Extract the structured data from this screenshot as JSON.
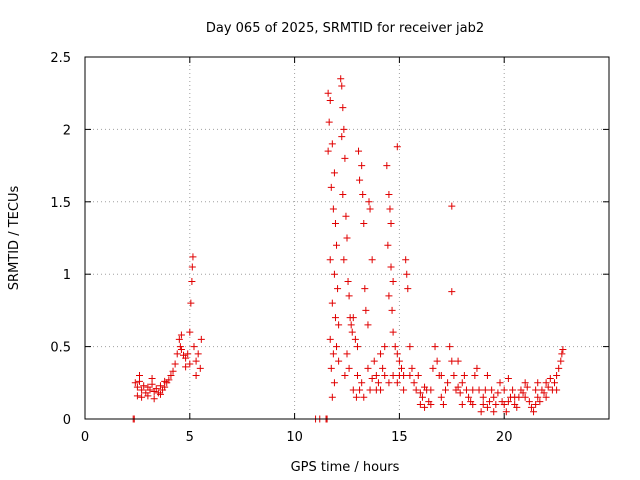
{
  "chart_data": {
    "type": "scatter",
    "title": "Day 065 of 2025, SRMTID for receiver jab2",
    "xlabel": "GPS time / hours",
    "ylabel": "SRMTID / TECUs",
    "xlim": [
      0,
      25
    ],
    "ylim": [
      0,
      2.5
    ],
    "x_ticks": [
      0,
      5,
      10,
      15,
      20
    ],
    "x_tick_labels": [
      "0",
      "5",
      "10",
      "15",
      "20"
    ],
    "y_ticks": [
      0,
      0.5,
      1,
      1.5,
      2,
      2.5
    ],
    "y_tick_labels": [
      "0",
      "0.5",
      "1",
      "1.5",
      "2",
      "2.5"
    ],
    "grid": true,
    "marker": "+",
    "series_color": "#e00000",
    "points": [
      [
        2.3,
        0.0
      ],
      [
        2.35,
        0.0
      ],
      [
        11.0,
        0.0
      ],
      [
        11.2,
        0.0
      ],
      [
        11.5,
        0.0
      ],
      [
        11.55,
        0.0
      ],
      [
        2.4,
        0.25
      ],
      [
        2.5,
        0.22
      ],
      [
        2.6,
        0.26
      ],
      [
        2.7,
        0.2
      ],
      [
        2.8,
        0.23
      ],
      [
        2.9,
        0.18
      ],
      [
        3.0,
        0.22
      ],
      [
        3.1,
        0.2
      ],
      [
        3.2,
        0.24
      ],
      [
        3.3,
        0.19
      ],
      [
        3.4,
        0.21
      ],
      [
        3.5,
        0.18
      ],
      [
        3.6,
        0.23
      ],
      [
        3.7,
        0.2
      ],
      [
        3.8,
        0.22
      ],
      [
        3.9,
        0.25
      ],
      [
        4.0,
        0.27
      ],
      [
        4.1,
        0.3
      ],
      [
        4.2,
        0.33
      ],
      [
        4.3,
        0.38
      ],
      [
        4.4,
        0.45
      ],
      [
        4.5,
        0.55
      ],
      [
        4.55,
        0.5
      ],
      [
        4.6,
        0.48
      ],
      [
        4.7,
        0.44
      ],
      [
        4.8,
        0.42
      ],
      [
        4.9,
        0.45
      ],
      [
        5.0,
        0.6
      ],
      [
        5.05,
        0.8
      ],
      [
        5.1,
        0.95
      ],
      [
        5.12,
        1.05
      ],
      [
        5.15,
        1.12
      ],
      [
        5.2,
        0.5
      ],
      [
        5.3,
        0.4
      ],
      [
        5.4,
        0.45
      ],
      [
        5.5,
        0.35
      ],
      [
        5.55,
        0.55
      ],
      [
        2.5,
        0.16
      ],
      [
        2.7,
        0.15
      ],
      [
        3.0,
        0.16
      ],
      [
        3.3,
        0.14
      ],
      [
        3.6,
        0.17
      ],
      [
        2.6,
        0.3
      ],
      [
        3.2,
        0.28
      ],
      [
        3.8,
        0.26
      ],
      [
        4.6,
        0.58
      ],
      [
        4.8,
        0.36
      ],
      [
        5.0,
        0.38
      ],
      [
        5.3,
        0.3
      ],
      [
        11.6,
        2.25
      ],
      [
        11.7,
        2.2
      ],
      [
        11.65,
        2.05
      ],
      [
        11.8,
        1.9
      ],
      [
        11.6,
        1.85
      ],
      [
        11.9,
        1.7
      ],
      [
        11.75,
        1.6
      ],
      [
        11.85,
        1.45
      ],
      [
        11.95,
        1.35
      ],
      [
        12.0,
        1.2
      ],
      [
        11.7,
        1.1
      ],
      [
        11.9,
        1.0
      ],
      [
        12.05,
        0.9
      ],
      [
        11.8,
        0.8
      ],
      [
        11.95,
        0.7
      ],
      [
        12.1,
        0.65
      ],
      [
        11.7,
        0.55
      ],
      [
        12.0,
        0.5
      ],
      [
        11.85,
        0.45
      ],
      [
        11.75,
        0.35
      ],
      [
        11.9,
        0.25
      ],
      [
        11.8,
        0.15
      ],
      [
        12.1,
        0.4
      ],
      [
        12.2,
        2.35
      ],
      [
        12.25,
        2.3
      ],
      [
        12.3,
        2.15
      ],
      [
        12.35,
        2.0
      ],
      [
        12.25,
        1.95
      ],
      [
        12.4,
        1.8
      ],
      [
        12.3,
        1.55
      ],
      [
        12.45,
        1.4
      ],
      [
        12.5,
        1.25
      ],
      [
        12.35,
        1.1
      ],
      [
        12.55,
        0.95
      ],
      [
        12.6,
        0.85
      ],
      [
        12.65,
        0.7
      ],
      [
        12.7,
        0.65
      ],
      [
        12.75,
        0.6
      ],
      [
        12.8,
        0.7
      ],
      [
        12.5,
        0.45
      ],
      [
        12.6,
        0.35
      ],
      [
        12.4,
        0.3
      ],
      [
        12.9,
        0.55
      ],
      [
        13.0,
        0.5
      ],
      [
        13.1,
        0.2
      ],
      [
        13.2,
        0.25
      ],
      [
        13.05,
        1.85
      ],
      [
        13.1,
        1.65
      ],
      [
        13.2,
        1.75
      ],
      [
        13.25,
        1.55
      ],
      [
        13.3,
        1.35
      ],
      [
        13.35,
        0.9
      ],
      [
        13.4,
        0.75
      ],
      [
        13.5,
        0.65
      ],
      [
        13.55,
        1.5
      ],
      [
        13.6,
        1.45
      ],
      [
        13.7,
        1.1
      ],
      [
        13.8,
        0.4
      ],
      [
        13.9,
        0.3
      ],
      [
        14.0,
        0.25
      ],
      [
        14.1,
        0.2
      ],
      [
        13.6,
        0.2
      ],
      [
        13.7,
        0.28
      ],
      [
        14.2,
        0.35
      ],
      [
        14.3,
        0.5
      ],
      [
        14.4,
        1.75
      ],
      [
        14.5,
        1.55
      ],
      [
        14.55,
        1.45
      ],
      [
        14.6,
        1.35
      ],
      [
        14.45,
        1.2
      ],
      [
        14.6,
        1.05
      ],
      [
        14.7,
        0.95
      ],
      [
        14.5,
        0.85
      ],
      [
        14.65,
        0.75
      ],
      [
        14.7,
        0.6
      ],
      [
        14.8,
        0.5
      ],
      [
        14.9,
        1.88
      ],
      [
        14.9,
        0.45
      ],
      [
        15.0,
        0.4
      ],
      [
        15.1,
        0.35
      ],
      [
        15.2,
        0.3
      ],
      [
        15.3,
        1.1
      ],
      [
        15.35,
        1.0
      ],
      [
        15.4,
        0.9
      ],
      [
        15.5,
        0.5
      ],
      [
        15.6,
        0.35
      ],
      [
        15.7,
        0.25
      ],
      [
        15.8,
        0.2
      ],
      [
        15.9,
        0.3
      ],
      [
        16.0,
        0.18
      ],
      [
        16.1,
        0.15
      ],
      [
        16.2,
        0.22
      ],
      [
        16.3,
        0.2
      ],
      [
        16.4,
        0.12
      ],
      [
        16.5,
        0.2
      ],
      [
        16.6,
        0.35
      ],
      [
        16.7,
        0.5
      ],
      [
        16.8,
        0.4
      ],
      [
        16.9,
        0.3
      ],
      [
        17.0,
        0.15
      ],
      [
        17.1,
        0.1
      ],
      [
        17.2,
        0.2
      ],
      [
        17.3,
        0.25
      ],
      [
        17.4,
        0.5
      ],
      [
        17.5,
        1.47
      ],
      [
        17.5,
        0.88
      ],
      [
        17.6,
        0.3
      ],
      [
        17.7,
        0.2
      ],
      [
        17.8,
        0.22
      ],
      [
        17.9,
        0.18
      ],
      [
        18.0,
        0.25
      ],
      [
        18.1,
        0.3
      ],
      [
        18.2,
        0.2
      ],
      [
        18.3,
        0.15
      ],
      [
        18.4,
        0.12
      ],
      [
        18.5,
        0.1
      ],
      [
        18.6,
        0.3
      ],
      [
        18.7,
        0.35
      ],
      [
        18.8,
        0.2
      ],
      [
        18.9,
        0.05
      ],
      [
        19.0,
        0.15
      ],
      [
        19.1,
        0.2
      ],
      [
        19.2,
        0.08
      ],
      [
        19.3,
        0.12
      ],
      [
        19.4,
        0.2
      ],
      [
        19.5,
        0.15
      ],
      [
        19.6,
        0.1
      ],
      [
        19.7,
        0.18
      ],
      [
        19.8,
        0.25
      ],
      [
        19.9,
        0.12
      ],
      [
        20.0,
        0.1
      ],
      [
        20.1,
        0.05
      ],
      [
        20.2,
        0.12
      ],
      [
        20.3,
        0.15
      ],
      [
        20.4,
        0.2
      ],
      [
        20.5,
        0.1
      ],
      [
        20.6,
        0.08
      ],
      [
        20.7,
        0.15
      ],
      [
        20.8,
        0.2
      ],
      [
        20.9,
        0.18
      ],
      [
        21.0,
        0.25
      ],
      [
        21.1,
        0.22
      ],
      [
        21.2,
        0.12
      ],
      [
        21.3,
        0.08
      ],
      [
        21.4,
        0.05
      ],
      [
        21.5,
        0.1
      ],
      [
        21.6,
        0.15
      ],
      [
        21.7,
        0.12
      ],
      [
        21.8,
        0.2
      ],
      [
        21.9,
        0.18
      ],
      [
        22.0,
        0.25
      ],
      [
        22.1,
        0.22
      ],
      [
        22.2,
        0.28
      ],
      [
        22.3,
        0.2
      ],
      [
        22.4,
        0.25
      ],
      [
        22.5,
        0.3
      ],
      [
        22.6,
        0.35
      ],
      [
        22.7,
        0.4
      ],
      [
        22.75,
        0.45
      ],
      [
        22.8,
        0.48
      ],
      [
        15.0,
        0.3
      ],
      [
        15.2,
        0.2
      ],
      [
        15.5,
        0.3
      ],
      [
        16.0,
        0.1
      ],
      [
        16.5,
        0.1
      ],
      [
        17.0,
        0.3
      ],
      [
        17.5,
        0.4
      ],
      [
        18.0,
        0.1
      ],
      [
        18.5,
        0.2
      ],
      [
        19.0,
        0.1
      ],
      [
        19.5,
        0.05
      ],
      [
        20.0,
        0.2
      ],
      [
        20.5,
        0.15
      ],
      [
        21.0,
        0.15
      ],
      [
        21.5,
        0.2
      ],
      [
        22.0,
        0.15
      ],
      [
        22.5,
        0.2
      ],
      [
        16.2,
        0.08
      ],
      [
        17.8,
        0.4
      ],
      [
        19.2,
        0.3
      ],
      [
        20.2,
        0.28
      ],
      [
        21.6,
        0.25
      ],
      [
        14.1,
        0.45
      ],
      [
        14.3,
        0.3
      ],
      [
        14.5,
        0.25
      ],
      [
        14.7,
        0.3
      ],
      [
        14.9,
        0.25
      ],
      [
        13.9,
        0.2
      ],
      [
        13.5,
        0.35
      ],
      [
        13.3,
        0.15
      ],
      [
        13.0,
        0.3
      ],
      [
        12.8,
        0.2
      ],
      [
        12.95,
        0.15
      ]
    ]
  }
}
